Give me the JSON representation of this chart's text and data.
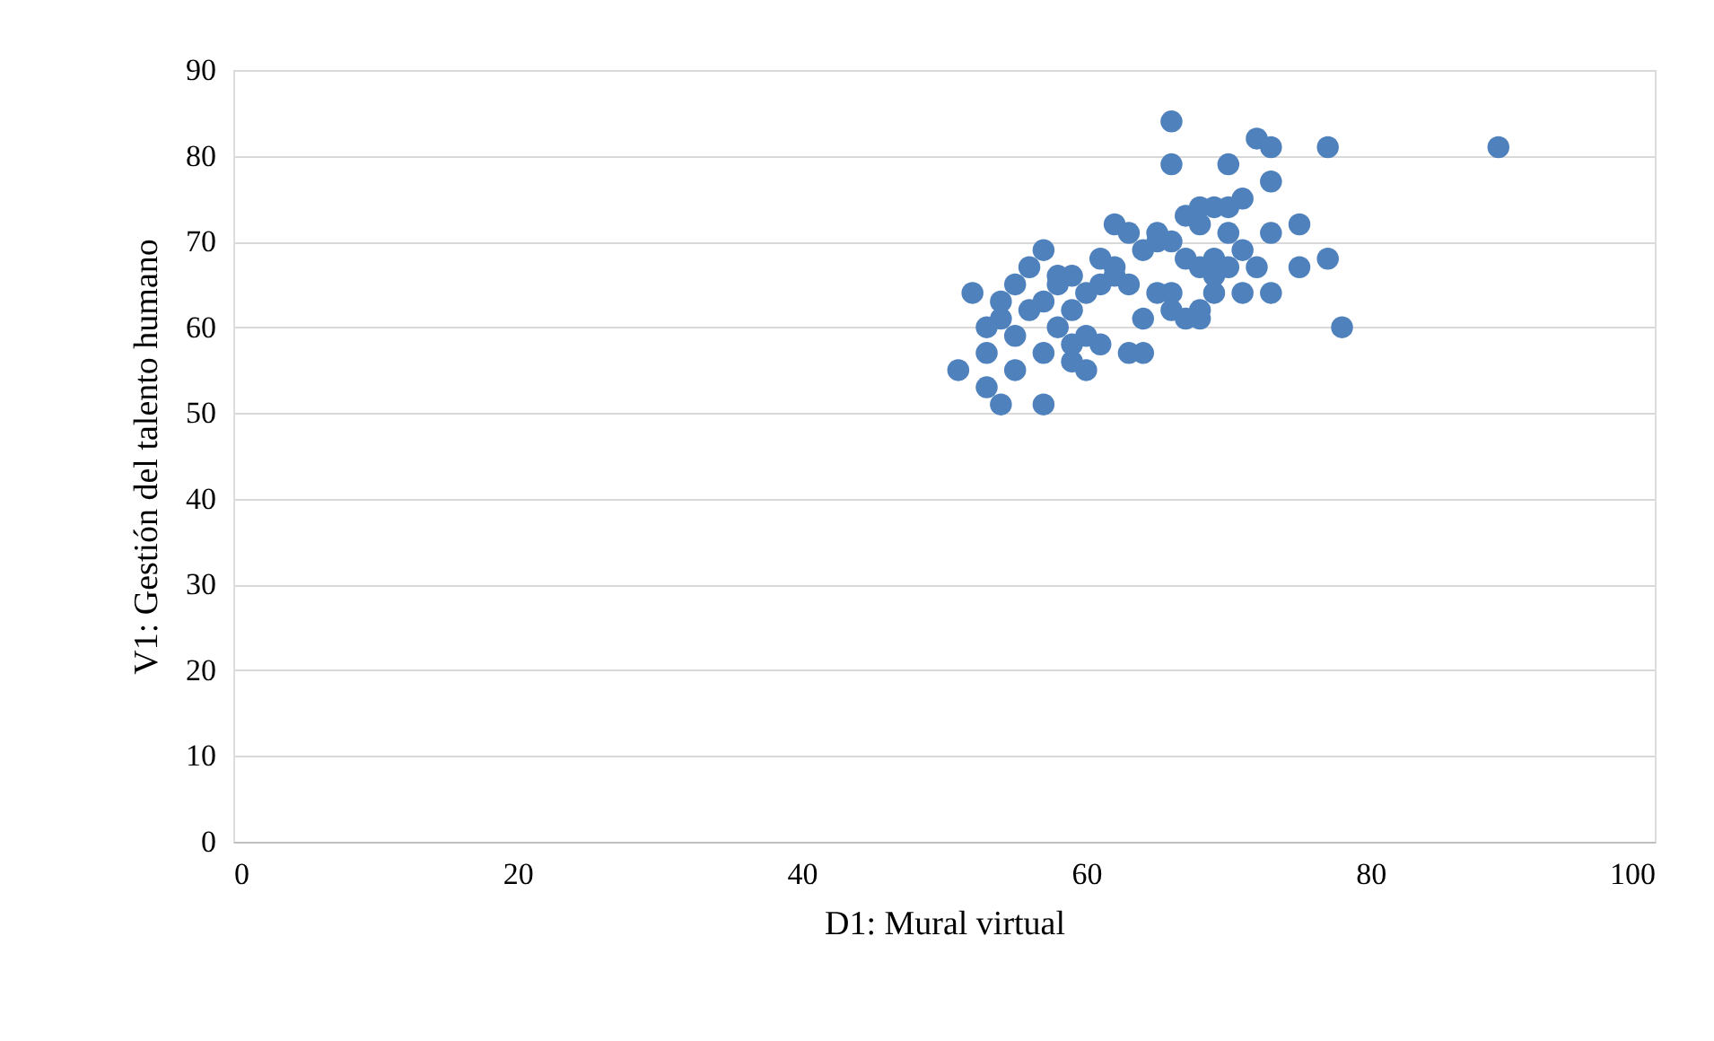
{
  "chart_data": {
    "type": "scatter",
    "xlabel": "D1: Mural virtual",
    "ylabel": "V1: Gestión del talento humano",
    "x": [
      51,
      52,
      53,
      53,
      53,
      54,
      54,
      54,
      55,
      55,
      55,
      56,
      56,
      57,
      57,
      57,
      57,
      58,
      58,
      58,
      59,
      59,
      59,
      59,
      60,
      60,
      60,
      61,
      61,
      61,
      62,
      62,
      62,
      63,
      63,
      63,
      64,
      64,
      64,
      65,
      65,
      65,
      66,
      66,
      66,
      66,
      66,
      67,
      67,
      67,
      68,
      68,
      68,
      68,
      68,
      69,
      69,
      69,
      69,
      70,
      70,
      70,
      70,
      71,
      71,
      71,
      72,
      72,
      73,
      73,
      73,
      73,
      75,
      75,
      77,
      77,
      78,
      89
    ],
    "series": [
      {
        "color": "#4f81bd",
        "values": [
          55,
          64,
          60,
          57,
          53,
          63,
          51,
          61,
          65,
          55,
          59,
          67,
          62,
          69,
          63,
          57,
          51,
          66,
          60,
          65,
          62,
          56,
          58,
          66,
          64,
          55,
          59,
          68,
          58,
          65,
          72,
          67,
          66,
          71,
          65,
          57,
          69,
          61,
          57,
          71,
          70,
          64,
          84,
          79,
          70,
          64,
          62,
          73,
          61,
          68,
          74,
          72,
          67,
          61,
          62,
          74,
          68,
          66,
          64,
          79,
          74,
          71,
          67,
          75,
          69,
          64,
          82,
          67,
          81,
          77,
          71,
          64,
          72,
          67,
          81,
          68,
          60,
          81
        ]
      }
    ],
    "xlim": [
      0,
      100
    ],
    "xticks": [
      0,
      20,
      40,
      60,
      80,
      100
    ],
    "ylim": [
      0,
      90
    ],
    "yticks": [
      0,
      10,
      20,
      30,
      40,
      50,
      60,
      70,
      80,
      90
    ],
    "grid": "y",
    "marker": "circle"
  }
}
